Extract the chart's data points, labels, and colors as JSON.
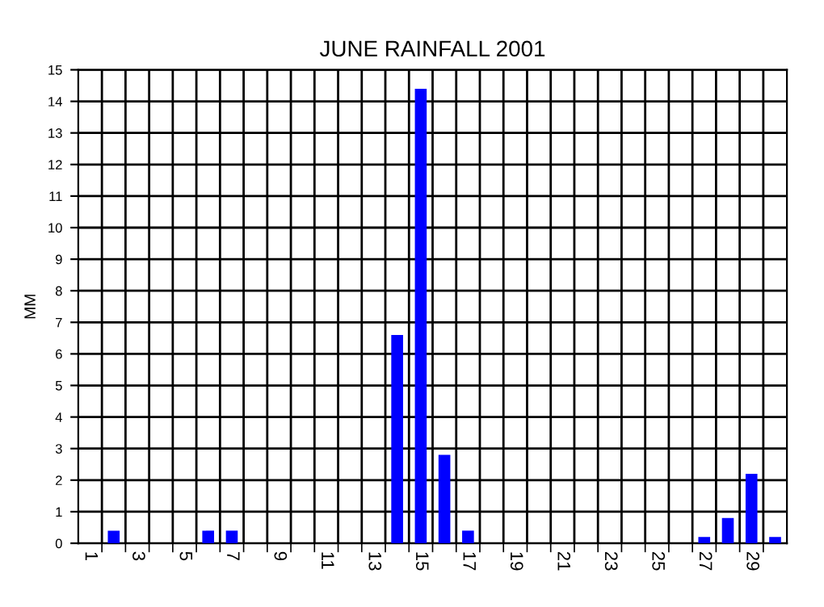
{
  "chart_data": {
    "type": "bar",
    "title": "JUNE RAINFALL 2001",
    "ylabel": "MM",
    "categories": [
      "1",
      null,
      "3",
      null,
      "5",
      null,
      "7",
      null,
      "9",
      null,
      "11",
      null,
      "13",
      null,
      "15",
      null,
      "17",
      null,
      "19",
      null,
      "21",
      null,
      "23",
      null,
      "25",
      null,
      "27",
      null,
      "29",
      null
    ],
    "values": [
      0,
      0.4,
      0,
      0,
      0,
      0.4,
      0.4,
      0,
      0,
      0,
      0,
      0,
      0,
      6.6,
      14.4,
      2.8,
      0.4,
      0,
      0,
      0,
      0,
      0,
      0,
      0,
      0,
      0,
      0.2,
      0.8,
      2.2,
      0.2
    ],
    "color": "#0000ff",
    "ylim": [
      0,
      15
    ],
    "yticks": [
      0,
      1,
      2,
      3,
      4,
      5,
      6,
      7,
      8,
      9,
      10,
      11,
      12,
      13,
      14,
      15
    ],
    "grid": true
  }
}
